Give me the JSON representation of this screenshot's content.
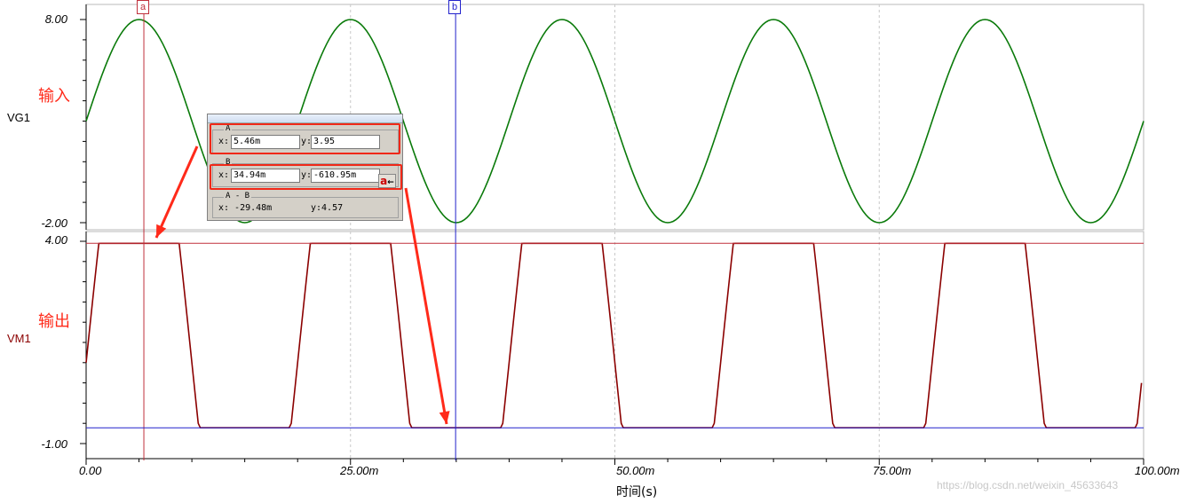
{
  "chart_data": [
    {
      "type": "line",
      "signal": "VG1",
      "annotation": "输入",
      "color": "#0a7a0a",
      "ylim": [
        -2.0,
        8.0
      ],
      "ytick_labels": [
        "8.00",
        "-2.00"
      ],
      "x_unit": "ms",
      "waveform": "sine",
      "period_ms": 20,
      "offset": 3.0,
      "amplitude": 5.0,
      "x": [
        0,
        5,
        10,
        15,
        20,
        25,
        30,
        35,
        40,
        45,
        50,
        55,
        60,
        65,
        70,
        75,
        80,
        85,
        90,
        95,
        100
      ],
      "y": [
        3.0,
        8.0,
        3.0,
        -2.0,
        3.0,
        8.0,
        3.0,
        -2.0,
        3.0,
        8.0,
        3.0,
        -2.0,
        3.0,
        8.0,
        3.0,
        -2.0,
        3.0,
        8.0,
        3.0,
        -2.0,
        3.0
      ]
    },
    {
      "type": "line",
      "signal": "VM1",
      "annotation": "输出",
      "color": "#8b0000",
      "ylim": [
        -1.0,
        4.0
      ],
      "ytick_labels": [
        "4.00",
        "-1.00"
      ],
      "x_unit": "ms",
      "waveform": "clipped-sine",
      "high": 3.95,
      "low": -0.61,
      "x": [
        0,
        1,
        9,
        12.5,
        16.5,
        20,
        21,
        29,
        32.5,
        36.5,
        40,
        41,
        49,
        52.5,
        56.5,
        60,
        61,
        69,
        72.5,
        76.5,
        80,
        81,
        89,
        92.5,
        96.5,
        100
      ],
      "y": [
        1.0,
        3.95,
        3.95,
        -0.61,
        -0.61,
        1.0,
        3.95,
        3.95,
        -0.61,
        -0.61,
        1.0,
        3.95,
        3.95,
        -0.61,
        -0.61,
        1.0,
        3.95,
        3.95,
        -0.61,
        -0.61,
        1.0,
        3.95,
        3.95,
        -0.61,
        -0.61,
        1.0
      ]
    }
  ],
  "x_axis": {
    "title": "时间(s)",
    "range_ms": [
      0,
      100
    ],
    "tick_labels": [
      "0.00",
      "25.00m",
      "50.00m",
      "75.00m",
      "100.00m"
    ],
    "tick_values_ms": [
      0,
      25,
      50,
      75,
      100
    ]
  },
  "cursors": {
    "a": {
      "label": "a",
      "x_ms": 5.46,
      "color": "#c0303c"
    },
    "b": {
      "label": "b",
      "x_ms": 34.94,
      "color": "#2222cc"
    }
  },
  "cursor_panel": {
    "group_a_title": "A",
    "group_b_title": "B",
    "group_diff_title": "A - B",
    "x_prefix": "x:",
    "y_prefix": "y:",
    "a_x": "5.46m",
    "a_y": "3.95",
    "b_x": "34.94m",
    "b_y": "-610.95m",
    "diff_x": "x: -29.48m",
    "diff_y": "y:4.57",
    "swap_label": "a",
    "swap_icon": "left-arrow-icon"
  },
  "watermark": "https://blog.csdn.net/weixin_45633643",
  "colors": {
    "highlight": "#f02818",
    "arrow": "#ff2a1a",
    "grid": "#c8c8c8"
  }
}
